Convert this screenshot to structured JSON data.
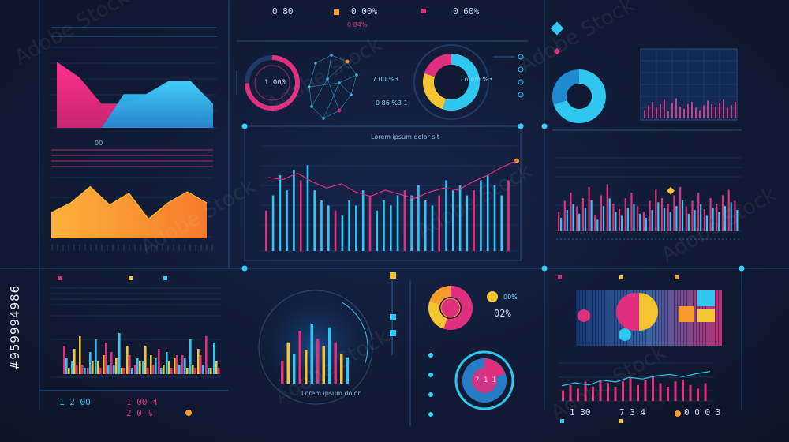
{
  "texts": {
    "top_readout_1": "0 80",
    "top_readout_2": "0 00%",
    "top_readout_3": "0 84%",
    "top_readout_4": "0 60%",
    "ring_value": "1 000",
    "network_label_1": "7 00 %3",
    "network_label_2": "0 86 %3  1",
    "center_title": "Lorem ipsum dolor sit",
    "donut_right_label": "Lorem %3",
    "mid_left_header": "00",
    "kpi_1": "1 2 00",
    "kpi_2": "1 00 4",
    "kpi_3": "2 0 %",
    "circle_label": "Lorem ipsum dolor",
    "pie_pct": "02%",
    "pct_small": "00%",
    "hud_donut_value": "7 1 1",
    "right_bottom_1": "1 30",
    "right_bottom_2": "7 3 4",
    "right_bottom_3": "0 0 0 3",
    "side_id": "#959994986"
  },
  "colors": {
    "pink": "#e0307d",
    "cyan": "#2fc6f0",
    "orange": "#f79c2c",
    "yellow": "#f4c431",
    "blue": "#2a8fe0",
    "grid": "#2b4a7a",
    "line": "#3aa9d9"
  },
  "chart_data": [
    {
      "type": "area",
      "series": [
        {
          "values": [
            82,
            63,
            30,
            30,
            40,
            56,
            58,
            30
          ]
        },
        {
          "values": [
            0,
            0,
            0,
            42,
            42,
            58,
            58,
            30
          ]
        }
      ],
      "x": [
        0,
        1,
        2,
        3,
        4,
        5,
        6,
        7
      ],
      "ylim": [
        0,
        100
      ]
    },
    {
      "type": "area",
      "series": [
        {
          "values": [
            40,
            55,
            80,
            52,
            70,
            30,
            55,
            72,
            55
          ]
        }
      ],
      "x": [
        0,
        1,
        2,
        3,
        4,
        5,
        6,
        7,
        8
      ],
      "ylim": [
        0,
        100
      ]
    },
    {
      "type": "bar",
      "values": [
        40,
        55,
        75,
        60,
        80,
        70,
        85,
        60,
        50,
        45,
        40,
        35,
        50,
        45,
        60,
        55,
        40,
        50,
        45,
        55,
        60,
        55,
        65,
        50,
        45,
        55,
        70,
        60,
        65,
        55,
        60,
        70,
        75,
        65,
        55,
        70
      ],
      "line": [
        70,
        68,
        74,
        66,
        60,
        64,
        56,
        52,
        58,
        54,
        50,
        56,
        60,
        58,
        66,
        72,
        80,
        86
      ],
      "ylim": [
        0,
        100
      ]
    },
    {
      "type": "bar",
      "series": [
        {
          "values": [
            45,
            20,
            60,
            10,
            55,
            30,
            35,
            65,
            45,
            15,
            20,
            30,
            40,
            35,
            25,
            30,
            55,
            40,
            60,
            50
          ]
        },
        {
          "values": [
            25,
            40,
            15,
            35,
            20,
            50,
            15,
            10,
            30,
            25,
            45,
            15,
            10,
            20,
            30,
            25,
            15,
            30,
            10,
            20
          ]
        },
        {
          "values": [
            10,
            15,
            10,
            20,
            10,
            15,
            25,
            10,
            10,
            20,
            10,
            25,
            15,
            10,
            15,
            10,
            10,
            15,
            10,
            10
          ]
        }
      ],
      "ylim": [
        0,
        100
      ]
    },
    {
      "type": "bar",
      "values": [
        30,
        55,
        40,
        70,
        45,
        80,
        60,
        50,
        75,
        55,
        40,
        35
      ],
      "ylim": [
        0,
        100
      ]
    },
    {
      "type": "bar",
      "values": [
        35,
        55,
        70,
        45,
        60,
        80,
        30,
        65,
        85,
        50,
        40,
        60,
        70,
        45,
        35,
        55,
        75,
        60,
        50,
        65,
        80,
        45,
        55,
        70,
        40,
        60,
        50,
        65,
        75,
        55
      ],
      "ylim": [
        0,
        100
      ]
    },
    {
      "type": "bar",
      "values": [
        30,
        45,
        35,
        55,
        40,
        60,
        50,
        40,
        55,
        65,
        45,
        60,
        70,
        50,
        40,
        55,
        60,
        45,
        35,
        50
      ],
      "line": [
        40,
        48,
        42,
        55,
        50,
        62,
        58,
        66,
        70,
        64,
        72,
        78
      ],
      "ylim": [
        0,
        100
      ]
    },
    {
      "type": "pie",
      "values": [
        55,
        25,
        20
      ],
      "categories": [
        "",
        "",
        ""
      ]
    },
    {
      "type": "pie",
      "values": [
        70,
        30
      ],
      "categories": [
        "",
        ""
      ]
    }
  ]
}
